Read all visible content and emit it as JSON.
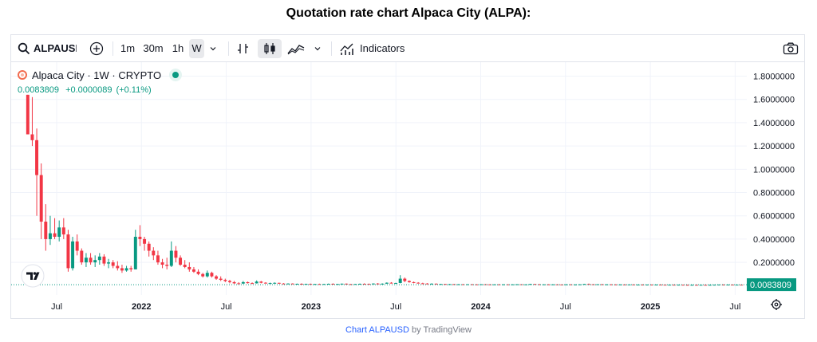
{
  "page": {
    "title": "Quotation rate chart Alpaca City (ALPA):"
  },
  "toolbar": {
    "symbol": "ALPAUSD",
    "intervals": [
      "1m",
      "30m",
      "1h",
      "W"
    ],
    "active_interval": "W",
    "indicators_label": "Indicators"
  },
  "legend": {
    "title": "Alpaca City · 1W · CRYPTO",
    "last": "0.0083809",
    "change": "+0.0000089",
    "change_pct": "(+0.11%)",
    "status_color": "#089981"
  },
  "credit": {
    "link_text": "Chart ALPAUSD",
    "suffix": " by TradingView"
  },
  "colors": {
    "up": "#089981",
    "down": "#f23645",
    "grid": "#f0f3fa",
    "price_label_bg": "#089981"
  },
  "chart_data": {
    "type": "candlestick",
    "title": "",
    "xlabel": "",
    "ylabel": "",
    "ylim": [
      -0.08,
      1.92
    ],
    "grid": true,
    "y_ticks": [
      "1.8000000",
      "1.6000000",
      "1.4000000",
      "1.2000000",
      "1.0000000",
      "0.8000000",
      "0.6000000",
      "0.4000000",
      "0.2000000"
    ],
    "x_ticks": [
      "Jul",
      "2022",
      "Jul",
      "2023",
      "Jul",
      "2024",
      "Jul",
      "2025",
      "Jul"
    ],
    "last_price": "0.0083809",
    "candles": [
      [
        1.64,
        1.64,
        1.3,
        1.3
      ],
      [
        1.3,
        1.62,
        1.2,
        1.25
      ],
      [
        1.25,
        1.35,
        0.6,
        0.95
      ],
      [
        0.95,
        1.05,
        0.4,
        0.55
      ],
      [
        0.55,
        0.7,
        0.3,
        0.4
      ],
      [
        0.4,
        0.6,
        0.35,
        0.45
      ],
      [
        0.45,
        0.58,
        0.4,
        0.42
      ],
      [
        0.42,
        0.56,
        0.38,
        0.5
      ],
      [
        0.5,
        0.58,
        0.4,
        0.44
      ],
      [
        0.44,
        0.48,
        0.12,
        0.15
      ],
      [
        0.15,
        0.42,
        0.13,
        0.38
      ],
      [
        0.38,
        0.44,
        0.26,
        0.3
      ],
      [
        0.3,
        0.32,
        0.18,
        0.2
      ],
      [
        0.2,
        0.28,
        0.16,
        0.24
      ],
      [
        0.24,
        0.28,
        0.18,
        0.2
      ],
      [
        0.2,
        0.26,
        0.16,
        0.22
      ],
      [
        0.22,
        0.28,
        0.18,
        0.25
      ],
      [
        0.25,
        0.27,
        0.17,
        0.19
      ],
      [
        0.19,
        0.23,
        0.15,
        0.2
      ],
      [
        0.2,
        0.22,
        0.15,
        0.17
      ],
      [
        0.17,
        0.21,
        0.13,
        0.15
      ],
      [
        0.15,
        0.18,
        0.11,
        0.13
      ],
      [
        0.13,
        0.17,
        0.12,
        0.15
      ],
      [
        0.15,
        0.17,
        0.12,
        0.14
      ],
      [
        0.14,
        0.48,
        0.14,
        0.42
      ],
      [
        0.42,
        0.52,
        0.34,
        0.4
      ],
      [
        0.4,
        0.42,
        0.3,
        0.36
      ],
      [
        0.36,
        0.38,
        0.25,
        0.3
      ],
      [
        0.3,
        0.33,
        0.22,
        0.26
      ],
      [
        0.26,
        0.3,
        0.18,
        0.2
      ],
      [
        0.2,
        0.23,
        0.15,
        0.18
      ],
      [
        0.18,
        0.24,
        0.14,
        0.17
      ],
      [
        0.17,
        0.38,
        0.16,
        0.3
      ],
      [
        0.3,
        0.34,
        0.2,
        0.24
      ],
      [
        0.24,
        0.26,
        0.17,
        0.18
      ],
      [
        0.18,
        0.22,
        0.15,
        0.16
      ],
      [
        0.16,
        0.2,
        0.12,
        0.14
      ],
      [
        0.14,
        0.16,
        0.11,
        0.12
      ],
      [
        0.12,
        0.14,
        0.09,
        0.1
      ],
      [
        0.1,
        0.11,
        0.07,
        0.08
      ],
      [
        0.08,
        0.13,
        0.07,
        0.11
      ],
      [
        0.11,
        0.12,
        0.07,
        0.08
      ],
      [
        0.08,
        0.09,
        0.05,
        0.06
      ],
      [
        0.06,
        0.08,
        0.04,
        0.05
      ],
      [
        0.05,
        0.06,
        0.03,
        0.04
      ],
      [
        0.04,
        0.05,
        0.02,
        0.03
      ],
      [
        0.03,
        0.04,
        0.015,
        0.02
      ],
      [
        0.02,
        0.03,
        0.012,
        0.018
      ],
      [
        0.018,
        0.04,
        0.015,
        0.03
      ],
      [
        0.03,
        0.035,
        0.018,
        0.022
      ],
      [
        0.022,
        0.028,
        0.015,
        0.02
      ],
      [
        0.02,
        0.045,
        0.018,
        0.035
      ],
      [
        0.035,
        0.04,
        0.02,
        0.025
      ],
      [
        0.025,
        0.03,
        0.018,
        0.02
      ],
      [
        0.02,
        0.026,
        0.015,
        0.022
      ],
      [
        0.022,
        0.028,
        0.017,
        0.024
      ],
      [
        0.024,
        0.026,
        0.016,
        0.018
      ],
      [
        0.018,
        0.022,
        0.014,
        0.016
      ],
      [
        0.016,
        0.02,
        0.013,
        0.018
      ],
      [
        0.018,
        0.02,
        0.013,
        0.015
      ],
      [
        0.015,
        0.018,
        0.012,
        0.016
      ],
      [
        0.016,
        0.02,
        0.013,
        0.014
      ],
      [
        0.014,
        0.017,
        0.011,
        0.015
      ],
      [
        0.015,
        0.018,
        0.012,
        0.013
      ],
      [
        0.013,
        0.016,
        0.011,
        0.014
      ],
      [
        0.014,
        0.017,
        0.012,
        0.013
      ],
      [
        0.013,
        0.016,
        0.01,
        0.014
      ],
      [
        0.014,
        0.018,
        0.012,
        0.016
      ],
      [
        0.016,
        0.02,
        0.012,
        0.013
      ],
      [
        0.013,
        0.016,
        0.011,
        0.014
      ],
      [
        0.014,
        0.018,
        0.012,
        0.017
      ],
      [
        0.017,
        0.019,
        0.012,
        0.013
      ],
      [
        0.013,
        0.016,
        0.011,
        0.012
      ],
      [
        0.012,
        0.015,
        0.01,
        0.014
      ],
      [
        0.014,
        0.018,
        0.012,
        0.016
      ],
      [
        0.016,
        0.02,
        0.013,
        0.015
      ],
      [
        0.015,
        0.018,
        0.012,
        0.013
      ],
      [
        0.013,
        0.02,
        0.012,
        0.018
      ],
      [
        0.018,
        0.022,
        0.014,
        0.016
      ],
      [
        0.016,
        0.02,
        0.013,
        0.017
      ],
      [
        0.017,
        0.028,
        0.015,
        0.025
      ],
      [
        0.025,
        0.03,
        0.018,
        0.02
      ],
      [
        0.02,
        0.025,
        0.015,
        0.023
      ],
      [
        0.023,
        0.09,
        0.02,
        0.06
      ],
      [
        0.06,
        0.07,
        0.03,
        0.04
      ],
      [
        0.04,
        0.045,
        0.025,
        0.03
      ],
      [
        0.03,
        0.035,
        0.02,
        0.025
      ],
      [
        0.025,
        0.03,
        0.018,
        0.02
      ],
      [
        0.02,
        0.025,
        0.015,
        0.018
      ],
      [
        0.018,
        0.022,
        0.013,
        0.015
      ],
      [
        0.015,
        0.02,
        0.012,
        0.017
      ],
      [
        0.017,
        0.019,
        0.012,
        0.013
      ],
      [
        0.013,
        0.016,
        0.011,
        0.014
      ],
      [
        0.014,
        0.016,
        0.011,
        0.012
      ],
      [
        0.012,
        0.015,
        0.01,
        0.013
      ],
      [
        0.013,
        0.015,
        0.01,
        0.011
      ],
      [
        0.011,
        0.014,
        0.009,
        0.012
      ],
      [
        0.012,
        0.014,
        0.009,
        0.01
      ],
      [
        0.01,
        0.013,
        0.009,
        0.012
      ],
      [
        0.012,
        0.014,
        0.009,
        0.011
      ],
      [
        0.011,
        0.013,
        0.009,
        0.01
      ],
      [
        0.01,
        0.013,
        0.009,
        0.012
      ],
      [
        0.012,
        0.014,
        0.01,
        0.011
      ],
      [
        0.011,
        0.013,
        0.009,
        0.01
      ],
      [
        0.01,
        0.012,
        0.008,
        0.011
      ],
      [
        0.011,
        0.013,
        0.009,
        0.01
      ],
      [
        0.01,
        0.012,
        0.008,
        0.011
      ],
      [
        0.011,
        0.012,
        0.008,
        0.009
      ],
      [
        0.009,
        0.012,
        0.008,
        0.011
      ],
      [
        0.011,
        0.013,
        0.009,
        0.012
      ],
      [
        0.012,
        0.013,
        0.009,
        0.01
      ],
      [
        0.01,
        0.012,
        0.008,
        0.011
      ],
      [
        0.011,
        0.016,
        0.009,
        0.014
      ],
      [
        0.014,
        0.016,
        0.01,
        0.012
      ],
      [
        0.012,
        0.014,
        0.009,
        0.01
      ],
      [
        0.01,
        0.012,
        0.008,
        0.011
      ],
      [
        0.011,
        0.013,
        0.009,
        0.01
      ],
      [
        0.01,
        0.012,
        0.008,
        0.011
      ],
      [
        0.011,
        0.013,
        0.009,
        0.01
      ],
      [
        0.01,
        0.011,
        0.008,
        0.009
      ],
      [
        0.009,
        0.012,
        0.008,
        0.011
      ],
      [
        0.011,
        0.012,
        0.008,
        0.009
      ],
      [
        0.009,
        0.011,
        0.008,
        0.01
      ],
      [
        0.01,
        0.012,
        0.008,
        0.011
      ],
      [
        0.011,
        0.016,
        0.01,
        0.014
      ],
      [
        0.014,
        0.018,
        0.011,
        0.012
      ],
      [
        0.012,
        0.014,
        0.009,
        0.01
      ],
      [
        0.01,
        0.013,
        0.009,
        0.012
      ],
      [
        0.012,
        0.014,
        0.009,
        0.01
      ],
      [
        0.01,
        0.012,
        0.008,
        0.011
      ],
      [
        0.011,
        0.013,
        0.009,
        0.01
      ],
      [
        0.01,
        0.012,
        0.008,
        0.009
      ],
      [
        0.009,
        0.011,
        0.007,
        0.01
      ],
      [
        0.01,
        0.012,
        0.008,
        0.009
      ],
      [
        0.009,
        0.011,
        0.007,
        0.01
      ],
      [
        0.01,
        0.011,
        0.007,
        0.008
      ],
      [
        0.008,
        0.01,
        0.007,
        0.009
      ],
      [
        0.009,
        0.011,
        0.007,
        0.008
      ],
      [
        0.008,
        0.01,
        0.006,
        0.009
      ],
      [
        0.009,
        0.01,
        0.007,
        0.008
      ],
      [
        0.008,
        0.01,
        0.006,
        0.009
      ],
      [
        0.009,
        0.011,
        0.007,
        0.008
      ],
      [
        0.008,
        0.01,
        0.006,
        0.007
      ],
      [
        0.007,
        0.009,
        0.006,
        0.008
      ],
      [
        0.008,
        0.01,
        0.006,
        0.007
      ],
      [
        0.007,
        0.009,
        0.005,
        0.008
      ],
      [
        0.008,
        0.009,
        0.006,
        0.007
      ],
      [
        0.007,
        0.009,
        0.005,
        0.006
      ],
      [
        0.006,
        0.008,
        0.005,
        0.007
      ],
      [
        0.007,
        0.009,
        0.005,
        0.006
      ],
      [
        0.006,
        0.008,
        0.005,
        0.007
      ],
      [
        0.007,
        0.009,
        0.005,
        0.006
      ],
      [
        0.006,
        0.008,
        0.005,
        0.007
      ],
      [
        0.007,
        0.009,
        0.006,
        0.008
      ],
      [
        0.008,
        0.01,
        0.006,
        0.009
      ],
      [
        0.009,
        0.011,
        0.007,
        0.008
      ],
      [
        0.008,
        0.01,
        0.007,
        0.009
      ],
      [
        0.009,
        0.01,
        0.007,
        0.008
      ],
      [
        0.008,
        0.01,
        0.007,
        0.0084
      ],
      [
        0.0084,
        0.0092,
        0.0076,
        0.0083809
      ]
    ]
  }
}
